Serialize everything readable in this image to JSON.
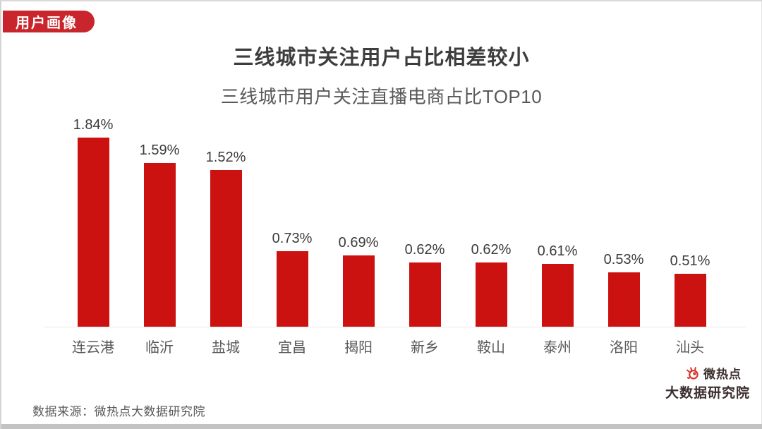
{
  "badge": {
    "label": "用户画像",
    "color": "#C8262C"
  },
  "header": {
    "title": "三线城市关注用户占比相差较小",
    "subtitle": "三线城市用户关注直播电商占比TOP10"
  },
  "chart_data": {
    "type": "bar",
    "title": "三线城市关注用户占比相差较小",
    "subtitle": "三线城市用户关注直播电商占比TOP10",
    "categories": [
      "连云港",
      "临沂",
      "盐城",
      "宜昌",
      "揭阳",
      "新乡",
      "鞍山",
      "泰州",
      "洛阳",
      "汕头"
    ],
    "values": [
      1.84,
      1.59,
      1.52,
      0.73,
      0.69,
      0.62,
      0.62,
      0.61,
      0.53,
      0.51
    ],
    "value_labels": [
      "1.84%",
      "1.59%",
      "1.52%",
      "0.73%",
      "0.69%",
      "0.62%",
      "0.62%",
      "0.61%",
      "0.53%",
      "0.51%"
    ],
    "bar_color": "#CC1111",
    "ylim": [
      0,
      2.0
    ],
    "grid": false,
    "legend": "none",
    "value_label_position": "above-bar",
    "axis_line_color": "#E9E9E9"
  },
  "footer": {
    "source": "数据来源：微热点大数据研究院"
  },
  "logo": {
    "line1": "微热点",
    "line2": "大数据研究院",
    "eye_icon_color": "#D8352A"
  },
  "colors": {
    "bar_red": "#CC1111",
    "badge_red": "#C8262C",
    "title_text": "#3d3d3d",
    "secondary_text": "#595959",
    "frame_gray": "#c3c3c3"
  }
}
